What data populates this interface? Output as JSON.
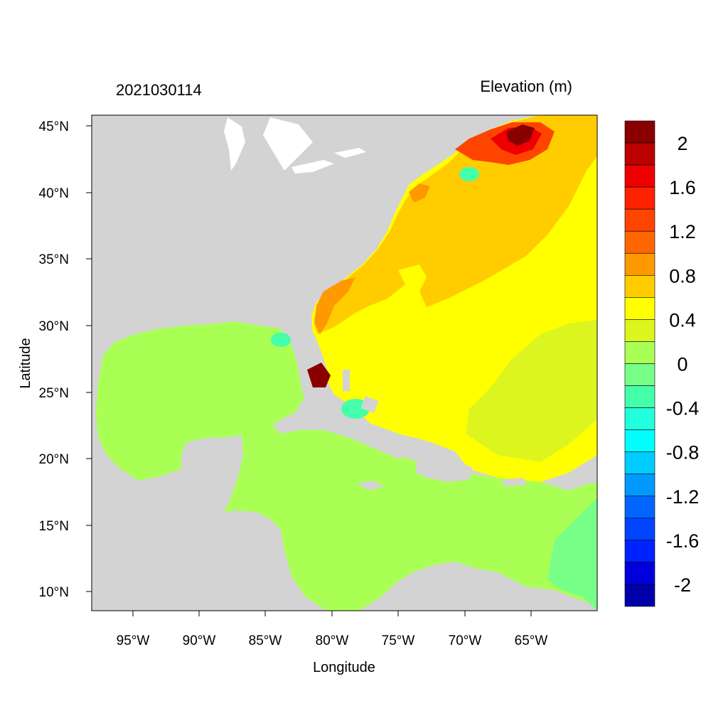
{
  "header": {
    "timestamp": "2021030114",
    "variable_title": "Elevation (m)"
  },
  "axes": {
    "xlabel": "Longitude",
    "ylabel": "Latitude",
    "x_ticks": [
      "95°W",
      "90°W",
      "85°W",
      "80°W",
      "75°W",
      "70°W",
      "65°W"
    ],
    "y_ticks": [
      "45°N",
      "40°N",
      "35°N",
      "30°N",
      "25°N",
      "20°N",
      "15°N",
      "10°N"
    ]
  },
  "colorbar": {
    "labels": [
      "2",
      "1.6",
      "1.2",
      "0.8",
      "0.4",
      "0",
      "-0.4",
      "-0.8",
      "-1.2",
      "-1.6",
      "-2"
    ],
    "colors": [
      "#880000",
      "#bb0000",
      "#ee0000",
      "#ff2200",
      "#ff4400",
      "#ff6600",
      "#ff9900",
      "#ffcc00",
      "#ffff00",
      "#ddf51f",
      "#aaff55",
      "#77ff88",
      "#44ffaa",
      "#22ffdd",
      "#00ffff",
      "#00ccff",
      "#0099ff",
      "#0066ff",
      "#0044ff",
      "#0022ff",
      "#0000dd",
      "#0000aa"
    ]
  },
  "map_colors": {
    "land": "#d3d3d3",
    "lakes": "#ffffff",
    "gulf_caribbean": "#aaff55",
    "atlantic_east": "#ddf51f",
    "atlantic_mid": "#ffff00",
    "shelf": "#ffcc00",
    "coastal_high": "#ff9900",
    "maine_high": "#ff4400",
    "maine_peak": "#880000",
    "negative_lows": "#44ffaa",
    "east_caribbean": "#77ff88"
  }
}
